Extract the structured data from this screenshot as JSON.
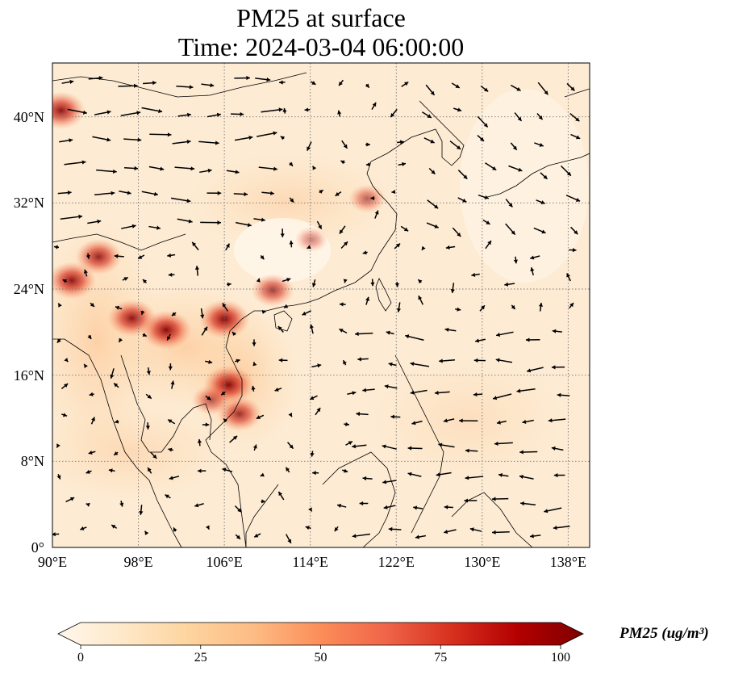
{
  "title": {
    "line1": "PM25 at surface",
    "line2": "Time: 2024-03-04 06:00:00"
  },
  "map": {
    "projection": "PlateCarree",
    "lon_range": [
      90,
      140
    ],
    "lat_range": [
      0,
      45
    ],
    "field": "PM25",
    "vector_field": "surface wind",
    "gridlines": "dotted gray",
    "colormap": "OrRd",
    "lat_ticks": [
      "0°",
      "8°N",
      "16°N",
      "24°N",
      "32°N",
      "40°N"
    ],
    "lon_ticks": [
      "90°E",
      "98°E",
      "106°E",
      "114°E",
      "122°E",
      "130°E",
      "138°E"
    ],
    "hotspots": [
      {
        "lon": 90.8,
        "lat": 40.6,
        "level": 85
      },
      {
        "lon": 94.3,
        "lat": 27.0,
        "level": 80
      },
      {
        "lon": 91.8,
        "lat": 24.8,
        "level": 85
      },
      {
        "lon": 97.4,
        "lat": 21.3,
        "level": 85
      },
      {
        "lon": 100.6,
        "lat": 20.2,
        "level": 90
      },
      {
        "lon": 106.0,
        "lat": 21.2,
        "level": 90
      },
      {
        "lon": 110.5,
        "lat": 23.9,
        "level": 70
      },
      {
        "lon": 106.4,
        "lat": 15.1,
        "level": 90
      },
      {
        "lon": 107.4,
        "lat": 12.4,
        "level": 75
      },
      {
        "lon": 104.8,
        "lat": 13.7,
        "level": 60
      },
      {
        "lon": 119.3,
        "lat": 32.4,
        "level": 55
      },
      {
        "lon": 114.1,
        "lat": 28.6,
        "level": 45
      }
    ]
  },
  "colorbar": {
    "label": "PM25 (ug/m³)",
    "ticks": [
      "0",
      "25",
      "50",
      "75",
      "100"
    ],
    "range": [
      0,
      100
    ],
    "colors": [
      "#fff7ec",
      "#fee8c8",
      "#fdd49e",
      "#fdbb84",
      "#fc8d59",
      "#ef6548",
      "#d7301f",
      "#b30000",
      "#7f0000"
    ],
    "extend": "both"
  }
}
